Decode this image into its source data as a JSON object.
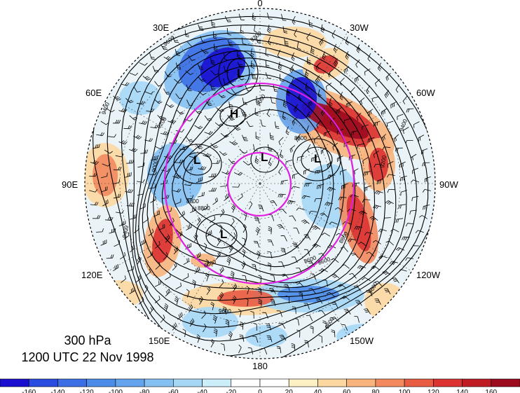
{
  "title": {
    "level": "300 hPa",
    "time": "1200 UTC 22 Nov 1998"
  },
  "longitude_labels": [
    {
      "id": "0",
      "text": "0"
    },
    {
      "id": "30w",
      "text": "30W"
    },
    {
      "id": "60w",
      "text": "60W"
    },
    {
      "id": "90w",
      "text": "90W"
    },
    {
      "id": "120w",
      "text": "120W"
    },
    {
      "id": "150w",
      "text": "150W"
    },
    {
      "id": "180",
      "text": "180"
    },
    {
      "id": "150e",
      "text": "150E"
    },
    {
      "id": "120e",
      "text": "120E"
    },
    {
      "id": "90e",
      "text": "90E"
    },
    {
      "id": "60e",
      "text": "60E"
    },
    {
      "id": "30e",
      "text": "30E"
    }
  ],
  "pressure_centers": [
    {
      "id": "l-europe",
      "text": "L"
    },
    {
      "id": "h-europe",
      "text": "H"
    },
    {
      "id": "l-siberia",
      "text": "L"
    },
    {
      "id": "l-pole",
      "text": "L"
    },
    {
      "id": "l-canada",
      "text": "L"
    },
    {
      "id": "l-pacific",
      "text": "L"
    }
  ],
  "contour_labels": [
    "9600",
    "9400",
    "9200",
    "9000",
    "8800",
    "8600",
    "9600",
    "9600",
    "9400",
    "9200",
    "8800",
    "8600",
    "9200",
    "9000",
    "8800",
    "9600",
    "9400",
    "8600",
    "8800"
  ],
  "colorbar": {
    "ticks": [
      "-160",
      "-140",
      "-120",
      "-100",
      "-80",
      "-60",
      "-40",
      "-20",
      "0",
      "20",
      "40",
      "60",
      "80",
      "100",
      "120",
      "140",
      "160"
    ],
    "colors": [
      "#1a0fd0",
      "#2a4be0",
      "#3c6fe6",
      "#4c8ce9",
      "#64a4ee",
      "#84c0f2",
      "#a6d8f6",
      "#cceefb",
      "#ffffff",
      "#fdf0c4",
      "#fcd8a0",
      "#f8b47c",
      "#f28a5e",
      "#e85c44",
      "#dc3232",
      "#c01c26",
      "#9c0a1e"
    ]
  }
}
